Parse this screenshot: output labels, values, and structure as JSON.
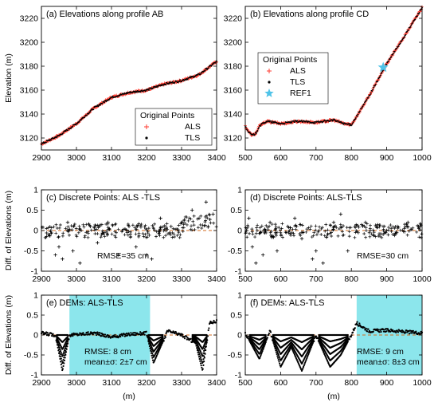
{
  "chart_data": [
    {
      "id": "a",
      "type": "scatter",
      "title": "(a) Elevations along profile AB",
      "ylabel": "Elevation (m)",
      "xlabel": "",
      "xlim": [
        2900,
        3400
      ],
      "ylim": [
        3110,
        3230
      ],
      "xticks": [
        2900,
        3000,
        3100,
        3200,
        3300,
        3400
      ],
      "yticks": [
        3120,
        3140,
        3160,
        3180,
        3200,
        3220
      ],
      "legend": {
        "position": "bottom-right",
        "title": "Original Points"
      },
      "series": [
        {
          "name": "ALS",
          "marker": "plus",
          "color": "#ff3b30",
          "x": [
            2900,
            2950,
            3000,
            3050,
            3100,
            3150,
            3200,
            3250,
            3300,
            3350,
            3400
          ],
          "y": [
            3115,
            3122,
            3132,
            3145,
            3154,
            3158,
            3160,
            3165,
            3168,
            3173,
            3184
          ]
        },
        {
          "name": "TLS",
          "marker": "dot",
          "color": "#000000",
          "x": [
            2900,
            2950,
            3000,
            3050,
            3100,
            3150,
            3200,
            3250,
            3300,
            3350,
            3400
          ],
          "y": [
            3115,
            3122,
            3132,
            3145,
            3154,
            3158,
            3160,
            3165,
            3168,
            3173,
            3184
          ]
        }
      ]
    },
    {
      "id": "b",
      "type": "scatter",
      "title": "(b) Elevations along profile CD",
      "ylabel": "",
      "xlabel": "",
      "xlim": [
        500,
        1000
      ],
      "ylim": [
        3110,
        3230
      ],
      "xticks": [
        500,
        600,
        700,
        800,
        900,
        1000
      ],
      "yticks": [
        3120,
        3140,
        3160,
        3180,
        3200,
        3220
      ],
      "legend": {
        "position": "middle-left",
        "title": "Original Points"
      },
      "series": [
        {
          "name": "ALS",
          "marker": "plus",
          "color": "#ff3b30",
          "x": [
            500,
            510,
            520,
            530,
            540,
            560,
            600,
            650,
            700,
            750,
            780,
            800,
            850,
            900,
            950,
            1000
          ],
          "y": [
            3130,
            3125,
            3122,
            3124,
            3130,
            3134,
            3132,
            3134,
            3133,
            3135,
            3132,
            3131,
            3155,
            3182,
            3205,
            3229
          ]
        },
        {
          "name": "TLS",
          "marker": "dot",
          "color": "#000000",
          "x": [
            500,
            510,
            520,
            530,
            540,
            560,
            600,
            650,
            700,
            750,
            780,
            800,
            850,
            900,
            950,
            1000
          ],
          "y": [
            3130,
            3125,
            3122,
            3124,
            3130,
            3134,
            3132,
            3134,
            3133,
            3135,
            3132,
            3131,
            3155,
            3182,
            3205,
            3229
          ]
        },
        {
          "name": "REF1",
          "marker": "star",
          "color": "#4fc3e8",
          "x": [
            890
          ],
          "y": [
            3179
          ]
        }
      ]
    },
    {
      "id": "c",
      "type": "scatter",
      "title": "(c) Discrete Points: ALS -TLS",
      "ylabel": "Diff. of Elevations (m)",
      "xlabel": "",
      "xlim": [
        2900,
        3400
      ],
      "ylim": [
        -1,
        1
      ],
      "xticks": [
        2900,
        3000,
        3100,
        3200,
        3300,
        3400
      ],
      "yticks": [
        -1,
        -0.5,
        0,
        0.5,
        1
      ],
      "annotation": "RMSE=35 cm",
      "zero_line": true,
      "series": [
        {
          "name": "",
          "marker": "plus",
          "color": "#000000",
          "x": [
            2920,
            2940,
            2950,
            2960,
            2975,
            2990,
            3010,
            3040,
            3060,
            3090,
            3120,
            3150,
            3170,
            3200,
            3215,
            3240,
            3270,
            3300,
            3330,
            3350,
            3370,
            3390
          ],
          "y": [
            -0.1,
            -0.6,
            -0.4,
            -0.7,
            0.2,
            -0.5,
            -0.8,
            0.1,
            -0.3,
            0.2,
            -0.6,
            0.1,
            -0.4,
            -0.6,
            -0.7,
            0.3,
            0.1,
            0.2,
            0.5,
            0.3,
            0.7,
            0.4
          ]
        }
      ]
    },
    {
      "id": "d",
      "type": "scatter",
      "title": "(d) Discrete Points: ALS-TLS",
      "ylabel": "",
      "xlabel": "",
      "xlim": [
        500,
        1000
      ],
      "ylim": [
        -1,
        1
      ],
      "xticks": [
        500,
        600,
        700,
        800,
        900,
        1000
      ],
      "yticks": [
        -1,
        -0.5,
        0,
        0.5,
        1
      ],
      "annotation": "RMSE=30 cm",
      "zero_line": true,
      "series": [
        {
          "name": "",
          "marker": "plus",
          "color": "#000000",
          "x": [
            510,
            520,
            530,
            550,
            570,
            590,
            620,
            640,
            660,
            690,
            700,
            720,
            750,
            770,
            790,
            810,
            840,
            870,
            900,
            930,
            960,
            990
          ],
          "y": [
            0.3,
            -0.4,
            -0.8,
            -0.6,
            0.2,
            -0.5,
            0.1,
            0.3,
            -0.2,
            -0.7,
            -0.5,
            -0.8,
            0.2,
            0.4,
            -0.5,
            0.1,
            0.2,
            0.1,
            0.0,
            0.1,
            0.2,
            0.1
          ]
        }
      ]
    },
    {
      "id": "e",
      "type": "line",
      "title": "(e) DEMs: ALS-TLS",
      "ylabel": "Diff. of Elevations (m)",
      "xlabel": "(m)",
      "xlim": [
        2900,
        3400
      ],
      "ylim": [
        -1,
        1
      ],
      "xticks": [
        2900,
        3000,
        3100,
        3200,
        3300,
        3400
      ],
      "yticks": [
        -1,
        -0.5,
        0,
        0.5,
        1
      ],
      "highlight_x": [
        2980,
        3210
      ],
      "annotation": [
        "RMSE: 8 cm",
        "mean±σ: 2±7 cm"
      ],
      "zero_line": true,
      "series": [
        {
          "name": "",
          "marker": "dot",
          "color": "#000000",
          "x": [
            2900,
            2940,
            2960,
            2980,
            3050,
            3100,
            3150,
            3200,
            3220,
            3260,
            3300,
            3340,
            3360,
            3380,
            3400
          ],
          "y": [
            0.05,
            0.0,
            -0.9,
            0.0,
            0.05,
            -0.05,
            0.02,
            0.05,
            -0.7,
            0.1,
            0.0,
            -0.2,
            -0.9,
            0.3,
            0.35
          ]
        }
      ]
    },
    {
      "id": "f",
      "type": "line",
      "title": "(f) DEMs: ALS-TLS",
      "ylabel": "",
      "xlabel": "(m)",
      "xlim": [
        500,
        1000
      ],
      "ylim": [
        -1,
        1
      ],
      "xticks": [
        500,
        600,
        700,
        800,
        900,
        1000
      ],
      "yticks": [
        -1,
        -0.5,
        0,
        0.5,
        1
      ],
      "highlight_x": [
        815,
        1000
      ],
      "annotation": [
        "RMSE: 9 cm",
        "mean±σ: 8±3 cm"
      ],
      "zero_line": true,
      "series": [
        {
          "name": "",
          "marker": "dot",
          "color": "#000000",
          "x": [
            500,
            540,
            570,
            600,
            630,
            660,
            700,
            740,
            770,
            800,
            815,
            850,
            900,
            950,
            1000
          ],
          "y": [
            0.05,
            -0.6,
            0.1,
            -0.8,
            -0.3,
            -0.9,
            0.0,
            -0.8,
            -0.5,
            0.0,
            0.3,
            0.1,
            0.12,
            0.08,
            0.05
          ]
        }
      ]
    }
  ]
}
